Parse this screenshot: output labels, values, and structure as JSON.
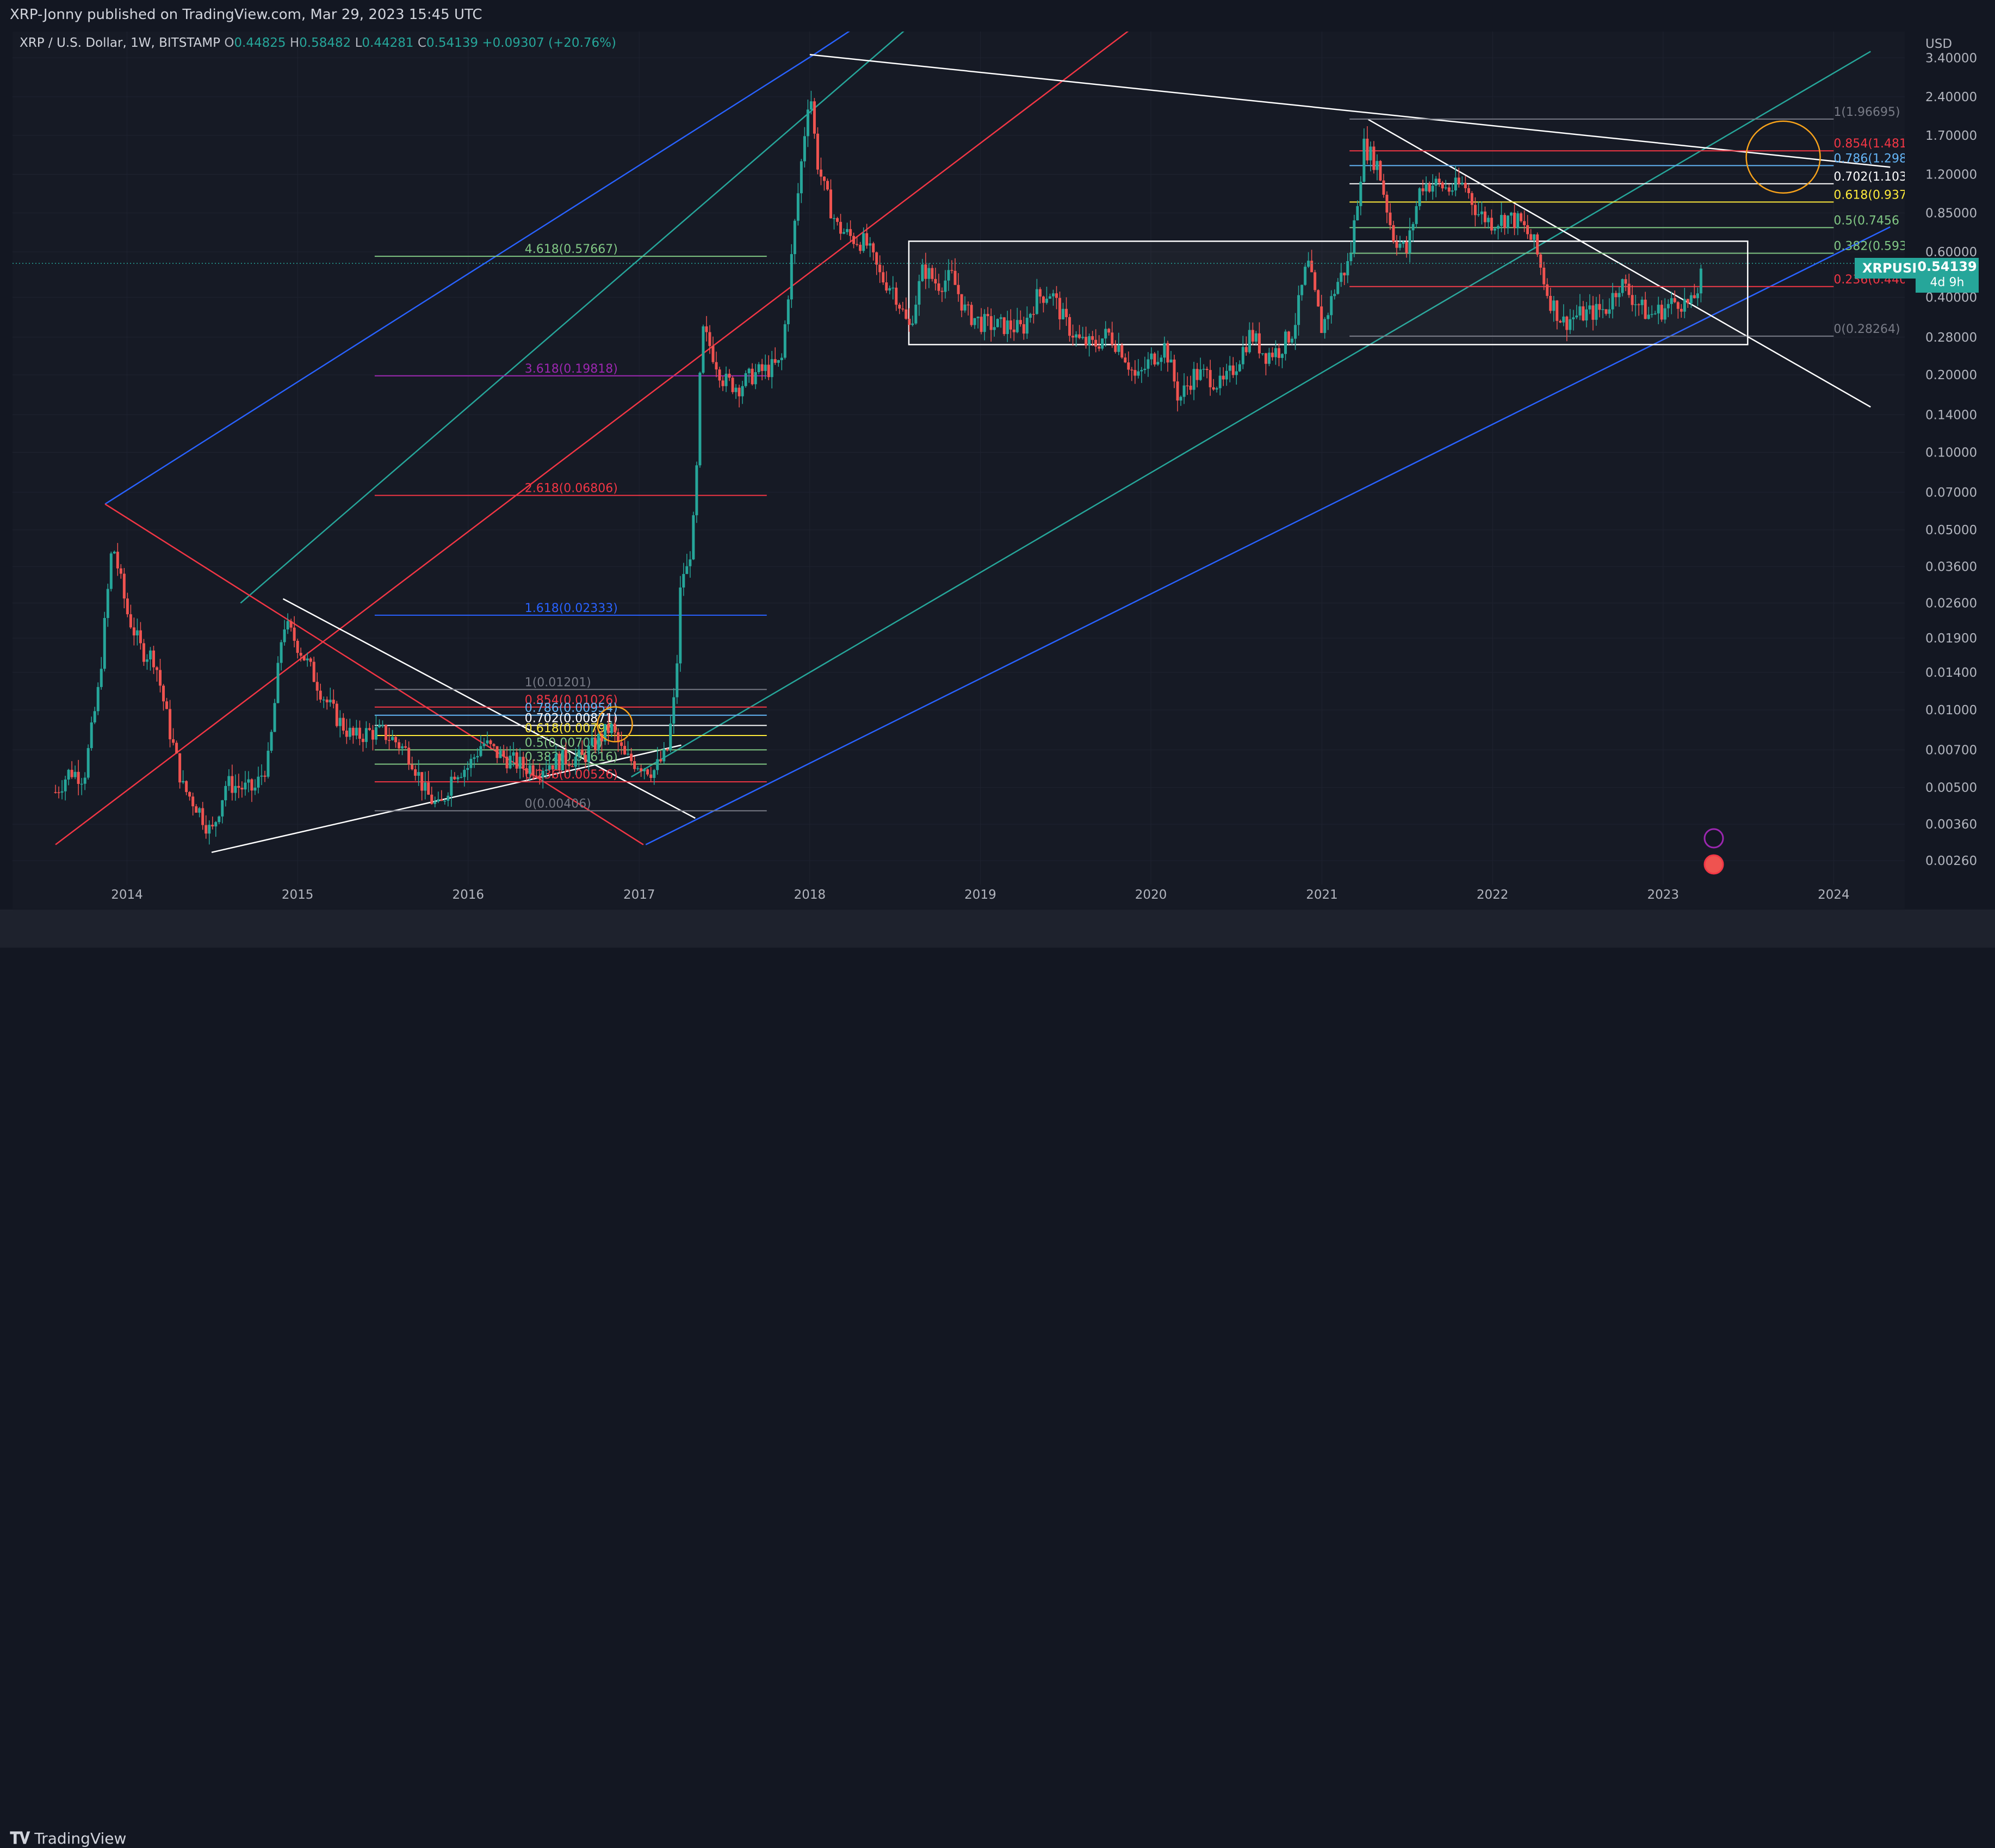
{
  "header": {
    "publisher_text": "XRP-Jonny published on TradingView.com, Mar 29, 2023 15:45 UTC"
  },
  "legend": {
    "symbol": "XRP / U.S. Dollar, 1W, BITSTAMP",
    "open_label": "O",
    "open": "0.44825",
    "high_label": "H",
    "high": "0.58482",
    "low_label": "L",
    "low": "0.44281",
    "close_label": "C",
    "close": "0.54139",
    "change": "+0.09307 (+20.76%)"
  },
  "price_axis": {
    "currency": "USD",
    "ticks": [
      "3.40000",
      "2.40000",
      "1.70000",
      "1.20000",
      "0.85000",
      "0.60000",
      "0.40000",
      "0.28000",
      "0.20000",
      "0.14000",
      "0.10000",
      "0.07000",
      "0.05000",
      "0.03600",
      "0.02600",
      "0.01900",
      "0.01400",
      "0.01000",
      "0.00700",
      "0.00500",
      "0.00360",
      "0.00260"
    ]
  },
  "footer": {
    "brand": "TradingView"
  },
  "current_price": {
    "symbol": "XRPUSD",
    "price": "0.54139",
    "countdown": "4d 9h"
  },
  "chart_data": {
    "type": "candlestick",
    "title": "XRP / U.S. Dollar, 1W, BITSTAMP",
    "y_scale": "log",
    "ylim": [
      0.0021,
      4.3
    ],
    "xlim": [
      "2013-05-01",
      "2024-06-01"
    ],
    "x_ticks": [
      "2014",
      "2015",
      "2016",
      "2017",
      "2018",
      "2019",
      "2020",
      "2021",
      "2022",
      "2023",
      "2024"
    ],
    "price_path": [
      [
        "2013-08-01",
        0.0048
      ],
      [
        "2013-09-01",
        0.0058
      ],
      [
        "2013-10-01",
        0.0055
      ],
      [
        "2013-11-01",
        0.012
      ],
      [
        "2013-12-01",
        0.045
      ],
      [
        "2014-01-01",
        0.024
      ],
      [
        "2014-02-01",
        0.017
      ],
      [
        "2014-03-01",
        0.016
      ],
      [
        "2014-04-01",
        0.0085
      ],
      [
        "2014-05-01",
        0.005
      ],
      [
        "2014-06-01",
        0.0042
      ],
      [
        "2014-07-01",
        0.0033
      ],
      [
        "2014-08-01",
        0.0052
      ],
      [
        "2014-09-01",
        0.005
      ],
      [
        "2014-10-01",
        0.0049
      ],
      [
        "2014-11-01",
        0.0065
      ],
      [
        "2014-12-01",
        0.022
      ],
      [
        "2015-01-01",
        0.018
      ],
      [
        "2015-02-01",
        0.014
      ],
      [
        "2015-03-01",
        0.011
      ],
      [
        "2015-04-01",
        0.009
      ],
      [
        "2015-05-01",
        0.0078
      ],
      [
        "2015-06-01",
        0.0082
      ],
      [
        "2015-07-01",
        0.0082
      ],
      [
        "2015-08-01",
        0.0075
      ],
      [
        "2015-09-01",
        0.0066
      ],
      [
        "2015-10-01",
        0.0048
      ],
      [
        "2015-11-01",
        0.0041
      ],
      [
        "2015-12-01",
        0.0058
      ],
      [
        "2016-01-01",
        0.006
      ],
      [
        "2016-02-01",
        0.0075
      ],
      [
        "2016-03-01",
        0.0068
      ],
      [
        "2016-04-01",
        0.0064
      ],
      [
        "2016-05-01",
        0.006
      ],
      [
        "2016-06-01",
        0.006
      ],
      [
        "2016-07-01",
        0.0063
      ],
      [
        "2016-08-01",
        0.0065
      ],
      [
        "2016-09-01",
        0.0065
      ],
      [
        "2016-10-01",
        0.0075
      ],
      [
        "2016-11-01",
        0.0086
      ],
      [
        "2016-12-01",
        0.0065
      ],
      [
        "2017-01-01",
        0.0062
      ],
      [
        "2017-02-01",
        0.0058
      ],
      [
        "2017-03-01",
        0.0068
      ],
      [
        "2017-03-20",
        0.012
      ],
      [
        "2017-04-01",
        0.034
      ],
      [
        "2017-04-15",
        0.035
      ],
      [
        "2017-05-01",
        0.06
      ],
      [
        "2017-05-15",
        0.3
      ],
      [
        "2017-06-01",
        0.26
      ],
      [
        "2017-07-01",
        0.19
      ],
      [
        "2017-08-01",
        0.18
      ],
      [
        "2017-09-01",
        0.2
      ],
      [
        "2017-10-01",
        0.21
      ],
      [
        "2017-11-01",
        0.22
      ],
      [
        "2017-12-01",
        0.8
      ],
      [
        "2018-01-01",
        2.7
      ],
      [
        "2018-01-15",
        1.4
      ],
      [
        "2018-02-01",
        1.05
      ],
      [
        "2018-03-01",
        0.75
      ],
      [
        "2018-04-01",
        0.68
      ],
      [
        "2018-05-01",
        0.65
      ],
      [
        "2018-06-01",
        0.48
      ],
      [
        "2018-07-01",
        0.43
      ],
      [
        "2018-08-01",
        0.3
      ],
      [
        "2018-09-01",
        0.52
      ],
      [
        "2018-10-01",
        0.45
      ],
      [
        "2018-11-01",
        0.48
      ],
      [
        "2018-12-01",
        0.35
      ],
      [
        "2019-01-01",
        0.32
      ],
      [
        "2019-02-01",
        0.31
      ],
      [
        "2019-03-01",
        0.31
      ],
      [
        "2019-04-01",
        0.3
      ],
      [
        "2019-05-01",
        0.4
      ],
      [
        "2019-06-01",
        0.42
      ],
      [
        "2019-07-01",
        0.32
      ],
      [
        "2019-08-01",
        0.27
      ],
      [
        "2019-09-01",
        0.26
      ],
      [
        "2019-10-01",
        0.29
      ],
      [
        "2019-11-01",
        0.25
      ],
      [
        "2019-12-01",
        0.19
      ],
      [
        "2020-01-01",
        0.23
      ],
      [
        "2020-02-01",
        0.26
      ],
      [
        "2020-03-01",
        0.16
      ],
      [
        "2020-04-01",
        0.2
      ],
      [
        "2020-05-01",
        0.2
      ],
      [
        "2020-06-01",
        0.18
      ],
      [
        "2020-07-01",
        0.22
      ],
      [
        "2020-08-01",
        0.29
      ],
      [
        "2020-09-01",
        0.24
      ],
      [
        "2020-10-01",
        0.25
      ],
      [
        "2020-11-01",
        0.3
      ],
      [
        "2020-12-01",
        0.55
      ],
      [
        "2021-01-01",
        0.3
      ],
      [
        "2021-02-01",
        0.45
      ],
      [
        "2021-03-01",
        0.55
      ],
      [
        "2021-04-01",
        1.55
      ],
      [
        "2021-05-01",
        1.3
      ],
      [
        "2021-06-01",
        0.7
      ],
      [
        "2021-07-01",
        0.6
      ],
      [
        "2021-08-01",
        1.1
      ],
      [
        "2021-09-01",
        1.1
      ],
      [
        "2021-10-01",
        1.05
      ],
      [
        "2021-11-01",
        1.1
      ],
      [
        "2021-12-01",
        0.85
      ],
      [
        "2022-01-01",
        0.78
      ],
      [
        "2022-02-01",
        0.82
      ],
      [
        "2022-03-01",
        0.78
      ],
      [
        "2022-04-01",
        0.64
      ],
      [
        "2022-05-01",
        0.4
      ],
      [
        "2022-06-01",
        0.32
      ],
      [
        "2022-07-01",
        0.34
      ],
      [
        "2022-08-01",
        0.35
      ],
      [
        "2022-09-01",
        0.36
      ],
      [
        "2022-10-01",
        0.46
      ],
      [
        "2022-11-01",
        0.39
      ],
      [
        "2022-12-01",
        0.34
      ],
      [
        "2023-01-01",
        0.36
      ],
      [
        "2023-02-01",
        0.39
      ],
      [
        "2023-03-01",
        0.37
      ],
      [
        "2023-03-20",
        0.45
      ],
      [
        "2023-03-29",
        0.541
      ]
    ],
    "current_price": 0.54139,
    "fib_sets": [
      {
        "levels": [
          {
            "label": "1(0.01201)",
            "value": 0.01201,
            "color": "#787b86"
          },
          {
            "label": "0.854(0.01026)",
            "value": 0.01026,
            "color": "#f23645"
          },
          {
            "label": "0.786(0.00954)",
            "value": 0.00954,
            "color": "#64b5f6"
          },
          {
            "label": "0.702(0.00871)",
            "value": 0.00871,
            "color": "#ffffff"
          },
          {
            "label": "0.618(0.00796)",
            "value": 0.00796,
            "color": "#ffeb3b"
          },
          {
            "label": "0.5(0.00700)",
            "value": 0.007,
            "color": "#81c784"
          },
          {
            "label": "0.382(0.00616)",
            "value": 0.00616,
            "color": "#81c784"
          },
          {
            "label": "0.236(0.00526)",
            "value": 0.00526,
            "color": "#f23645"
          },
          {
            "label": "0(0.00406)",
            "value": 0.00406,
            "color": "#787b86"
          },
          {
            "label": "1.618(0.02333)",
            "value": 0.02333,
            "color": "#2962ff"
          },
          {
            "label": "2.618(0.06806)",
            "value": 0.06806,
            "color": "#f23645"
          },
          {
            "label": "3.618(0.19818)",
            "value": 0.19818,
            "color": "#9c27b0"
          },
          {
            "label": "4.618(0.57667)",
            "value": 0.57667,
            "color": "#81c784"
          }
        ]
      },
      {
        "levels": [
          {
            "label": "1(1.96695)",
            "value": 1.96695,
            "color": "#787b86"
          },
          {
            "label": "0.854(1.481",
            "value": 1.481,
            "color": "#f23645"
          },
          {
            "label": "0.786(1.298",
            "value": 1.298,
            "color": "#64b5f6"
          },
          {
            "label": "0.702(1.103",
            "value": 1.103,
            "color": "#ffffff"
          },
          {
            "label": "0.618(0.937",
            "value": 0.937,
            "color": "#ffeb3b"
          },
          {
            "label": "0.5(0.7456",
            "value": 0.7456,
            "color": "#81c784"
          },
          {
            "label": "0.382(0.593",
            "value": 0.593,
            "color": "#81c784"
          },
          {
            "label": "0.236(0.440",
            "value": 0.44,
            "color": "#f23645"
          },
          {
            "label": "0(0.28264)",
            "value": 0.28264,
            "color": "#787b86"
          }
        ]
      }
    ],
    "trend_lines": [
      {
        "color": "#2962ff",
        "points": [
          [
            "2013-11-15",
            0.063
          ],
          [
            "2018-01-10",
            3.5
          ],
          [
            "2019-04-01",
            12
          ]
        ]
      },
      {
        "color": "#26a69a",
        "points": [
          [
            "2014-09-01",
            0.026
          ],
          [
            "2019-05-01",
            12
          ]
        ]
      },
      {
        "color": "#f23645",
        "points": [
          [
            "2013-08-01",
            0.003
          ],
          [
            "2020-10-01",
            12
          ]
        ]
      },
      {
        "color": "#26a69a",
        "points": [
          [
            "2016-12-15",
            0.0055
          ],
          [
            "2024-03-20",
            3.6
          ]
        ]
      },
      {
        "color": "#2962ff",
        "points": [
          [
            "2017-01-15",
            0.003
          ],
          [
            "2024-05-01",
            0.75
          ]
        ]
      },
      {
        "color": "#f23645",
        "points": [
          [
            "2013-11-15",
            0.063
          ],
          [
            "2017-01-10",
            0.003
          ]
        ]
      },
      {
        "color": "#ffffff",
        "points": [
          [
            "2014-12-01",
            0.027
          ],
          [
            "2017-05-01",
            0.0038
          ]
        ]
      },
      {
        "color": "#ffffff",
        "points": [
          [
            "2014-07-01",
            0.0028
          ],
          [
            "2017-04-01",
            0.0073
          ]
        ]
      },
      {
        "color": "#ffffff",
        "points": [
          [
            "2018-01-01",
            3.5
          ],
          [
            "2024-05-01",
            1.28
          ]
        ]
      },
      {
        "color": "#ffffff",
        "points": [
          [
            "2021-04-10",
            1.96
          ],
          [
            "2024-03-20",
            0.15
          ]
        ]
      }
    ]
  }
}
